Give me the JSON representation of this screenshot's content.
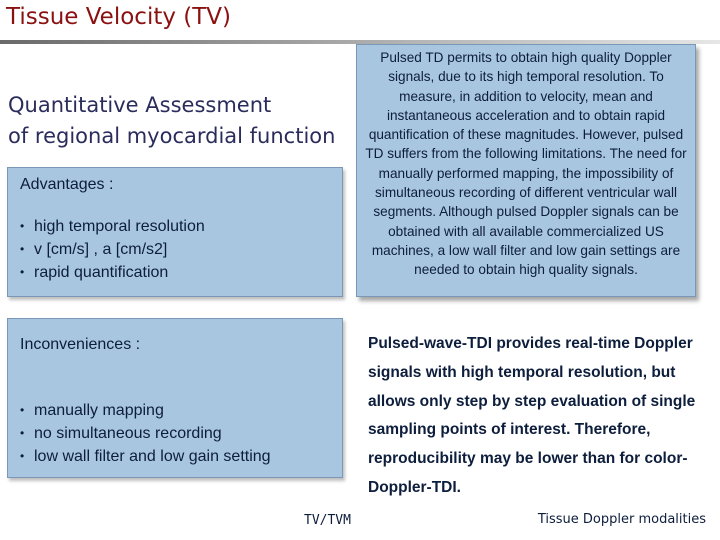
{
  "header": {
    "title": "Tissue Velocity (TV)"
  },
  "subtitle": {
    "line1": "Quantitative Assessment",
    "line2": "of regional myocardial function"
  },
  "advantages": {
    "title": "Advantages :",
    "items": [
      "high temporal resolution",
      "v [cm/s] , a [cm/s2]",
      "rapid quantification"
    ]
  },
  "inconveniences": {
    "title": "Inconveniences :",
    "items": [
      "manually mapping",
      "no simultaneous recording",
      "low wall filter and low gain setting"
    ]
  },
  "pulsed_td_box": {
    "text": "Pulsed TD permits to obtain high quality Doppler signals, due to its high temporal resolution. To measure, in addition to velocity, mean and instantaneous acceleration and to obtain rapid quantification of these magnitudes. However, pulsed TD suffers from the following limitations. The need for manually performed mapping, the impossibility of simultaneous recording of different ventricular wall segments. Although pulsed Doppler signals can be obtained with all available commercialized US machines, a low wall filter and low gain settings are needed to obtain high quality signals."
  },
  "pulsed_wave_text": "Pulsed-wave-TDI provides real-time Doppler signals with high temporal resolution, but allows only step by step evaluation of single sampling points of interest. Therefore, reproducibility may be lower than for color-Doppler-TDI.",
  "footer": {
    "left": "TV/TVM",
    "right": "Tissue Doppler modalities"
  },
  "colors": {
    "title": "#8b1010",
    "box_fill": "#a9c6e0",
    "text": "#0d1d3c",
    "subtitle": "#2a2c5c"
  }
}
